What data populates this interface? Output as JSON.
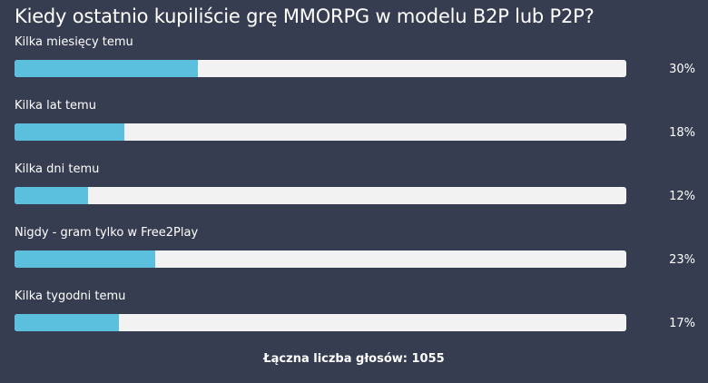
{
  "poll": {
    "question": "Kiedy ostatnio kupiliście grę MMORPG w modelu B2P lub P2P?",
    "options": [
      {
        "label": "Kilka miesięcy temu",
        "percent_text": "30%",
        "value": 30
      },
      {
        "label": "Kilka lat temu",
        "percent_text": "18%",
        "value": 18
      },
      {
        "label": "Kilka dni temu",
        "percent_text": "12%",
        "value": 12
      },
      {
        "label": "Nigdy - gram tylko w Free2Play",
        "percent_text": "23%",
        "value": 23
      },
      {
        "label": "Kilka tygodni temu",
        "percent_text": "17%",
        "value": 17
      }
    ],
    "total_label": "Łączna liczba głosów: 1055"
  },
  "colors": {
    "background": "#373d51",
    "bar_track": "#f2f2f2",
    "bar_fill": "#5bc0de",
    "text": "#ffffff"
  }
}
